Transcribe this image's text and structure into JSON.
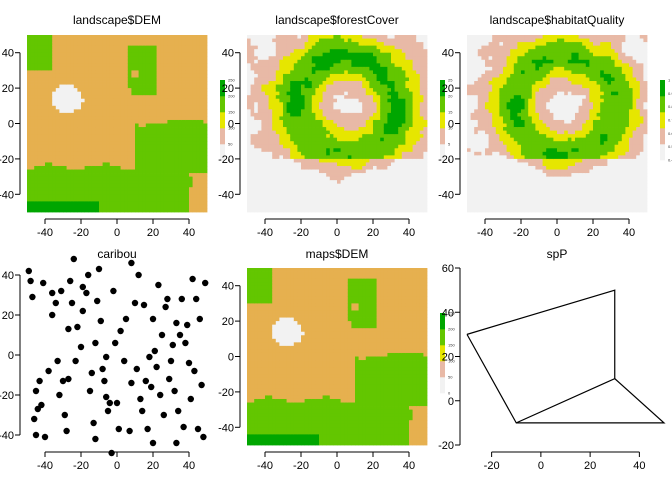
{
  "colors": {
    "terrain_low": "#f2f2f2",
    "terrain_mid_low": "#e8b9a6",
    "terrain_mid": "#e6e600",
    "terrain_high": "#63c600",
    "terrain_top": "#00a600",
    "dem_fill": "#e6b04f",
    "point": "#000000",
    "line": "#000000"
  },
  "chart_data": [
    {
      "type": "heatmap",
      "title": "landscape$DEM",
      "xlim": [
        -50,
        50
      ],
      "ylim": [
        -50,
        50
      ],
      "xticks": [
        -40,
        -20,
        0,
        20,
        40
      ],
      "yticks": [
        -40,
        -20,
        0,
        20,
        40
      ],
      "legend": {
        "placement": "right",
        "ticks": [
          "0",
          "50",
          "100",
          "150",
          "200",
          "250"
        ],
        "range": [
          0,
          250
        ]
      },
      "palette": "terrain",
      "grid": false
    },
    {
      "type": "heatmap",
      "title": "landscape$forestCover",
      "xlim": [
        -50,
        50
      ],
      "ylim": [
        -50,
        50
      ],
      "xticks": [
        -40,
        -20,
        0,
        20,
        40
      ],
      "yticks": [
        -40,
        -20,
        0,
        20,
        40
      ],
      "legend": {
        "placement": "right",
        "ticks": [
          "0",
          "5",
          "10",
          "15",
          "20",
          "25"
        ],
        "range": [
          0,
          25
        ]
      },
      "palette": "terrain",
      "grid": false
    },
    {
      "type": "heatmap",
      "title": "landscape$habitatQuality",
      "xlim": [
        -50,
        50
      ],
      "ylim": [
        -50,
        50
      ],
      "xticks": [
        -40,
        -20,
        0,
        20,
        40
      ],
      "yticks": [
        -40,
        -20,
        0,
        20,
        40
      ],
      "legend": {
        "placement": "right",
        "ticks": [
          "0.4",
          "0.5",
          "0.6",
          "0.7",
          "0.8",
          "0.9",
          "1"
        ],
        "range": [
          0.4,
          1
        ]
      },
      "palette": "terrain",
      "grid": false
    },
    {
      "type": "scatter",
      "title": "caribou",
      "xlim": [
        -50,
        50
      ],
      "ylim": [
        -45,
        45
      ],
      "xticks": [
        -40,
        -20,
        0,
        20,
        40
      ],
      "yticks": [
        -40,
        -20,
        0,
        20,
        40
      ],
      "points": [
        [
          -49,
          42
        ],
        [
          -48,
          37
        ],
        [
          -47,
          29
        ],
        [
          -44,
          -27
        ],
        [
          -42,
          -25
        ],
        [
          -43,
          -13
        ],
        [
          -45,
          -18
        ],
        [
          -46,
          -32
        ],
        [
          -40,
          -41
        ],
        [
          -41,
          36
        ],
        [
          -36,
          31
        ],
        [
          -36,
          20
        ],
        [
          -34,
          26
        ],
        [
          -33,
          -3
        ],
        [
          -31,
          32
        ],
        [
          -30,
          -13
        ],
        [
          -32,
          -20
        ],
        [
          -29,
          -30
        ],
        [
          -28,
          -38
        ],
        [
          -27,
          -12
        ],
        [
          -27,
          13
        ],
        [
          -26,
          37
        ],
        [
          -25,
          26
        ],
        [
          -24,
          48
        ],
        [
          -22,
          14
        ],
        [
          -20,
          4
        ],
        [
          -19,
          22
        ],
        [
          -19,
          34
        ],
        [
          -17,
          31
        ],
        [
          -15,
          -18
        ],
        [
          -14,
          -9
        ],
        [
          -13,
          -34
        ],
        [
          -12,
          -42
        ],
        [
          -11,
          27
        ],
        [
          -10,
          43
        ],
        [
          -9,
          17
        ],
        [
          -8,
          -7
        ],
        [
          -7,
          -13
        ],
        [
          -6,
          -21
        ],
        [
          -5,
          -28
        ],
        [
          -4,
          -24
        ],
        [
          -3,
          -49
        ],
        [
          -2,
          32
        ],
        [
          -1,
          6
        ],
        [
          1,
          -37
        ],
        [
          2,
          12
        ],
        [
          4,
          -3
        ],
        [
          5,
          18
        ],
        [
          7,
          -38
        ],
        [
          8,
          -14
        ],
        [
          10,
          26
        ],
        [
          11,
          -7
        ],
        [
          12,
          40
        ],
        [
          13,
          -22
        ],
        [
          14,
          -28
        ],
        [
          15,
          25
        ],
        [
          16,
          -13
        ],
        [
          17,
          -37
        ],
        [
          18,
          -1
        ],
        [
          19,
          -16
        ],
        [
          20,
          18
        ],
        [
          21,
          2
        ],
        [
          22,
          -6
        ],
        [
          23,
          35
        ],
        [
          24,
          -20
        ],
        [
          25,
          10
        ],
        [
          26,
          -30
        ],
        [
          27,
          24
        ],
        [
          28,
          28
        ],
        [
          29,
          -12
        ],
        [
          30,
          -3
        ],
        [
          31,
          5
        ],
        [
          32,
          -18
        ],
        [
          33,
          16
        ],
        [
          34,
          -28
        ],
        [
          35,
          10
        ],
        [
          36,
          28
        ],
        [
          37,
          -36
        ],
        [
          38,
          6
        ],
        [
          39,
          15
        ],
        [
          40,
          -4
        ],
        [
          41,
          -22
        ],
        [
          42,
          38
        ],
        [
          43,
          -8
        ],
        [
          44,
          28
        ],
        [
          45,
          -37
        ],
        [
          46,
          18
        ],
        [
          47,
          -15
        ],
        [
          48,
          -41
        ],
        [
          49,
          36
        ],
        [
          -38,
          -8
        ],
        [
          -23,
          -3
        ],
        [
          -16,
          40
        ],
        [
          -6,
          -1
        ],
        [
          8,
          46
        ],
        [
          -45,
          -40
        ],
        [
          0,
          -24
        ],
        [
          20,
          -44
        ],
        [
          -12,
          6
        ],
        [
          33,
          -44
        ]
      ],
      "grid": false
    },
    {
      "type": "heatmap",
      "title": "maps$DEM",
      "xlim": [
        -50,
        50
      ],
      "ylim": [
        -50,
        50
      ],
      "xticks": [
        -40,
        -20,
        0,
        20,
        40
      ],
      "yticks": [
        -40,
        -20,
        0,
        20,
        40
      ],
      "legend": {
        "placement": "right",
        "ticks": [
          "0",
          "50",
          "100",
          "150",
          "200",
          "250"
        ],
        "range": [
          0,
          250
        ]
      },
      "palette": "terrain",
      "grid": false
    },
    {
      "type": "line",
      "title": "spP",
      "xlim": [
        -30,
        50
      ],
      "ylim": [
        -20,
        60
      ],
      "xticks": [
        -20,
        0,
        20,
        40
      ],
      "yticks": [
        -20,
        0,
        20,
        40,
        60
      ],
      "polygons": [
        [
          [
            -30,
            30
          ],
          [
            30,
            50
          ],
          [
            30,
            10
          ],
          [
            -10,
            -10
          ],
          [
            -30,
            30
          ]
        ],
        [
          [
            30,
            10
          ],
          [
            50,
            -10
          ],
          [
            -10,
            -10
          ]
        ]
      ],
      "grid": false
    }
  ]
}
